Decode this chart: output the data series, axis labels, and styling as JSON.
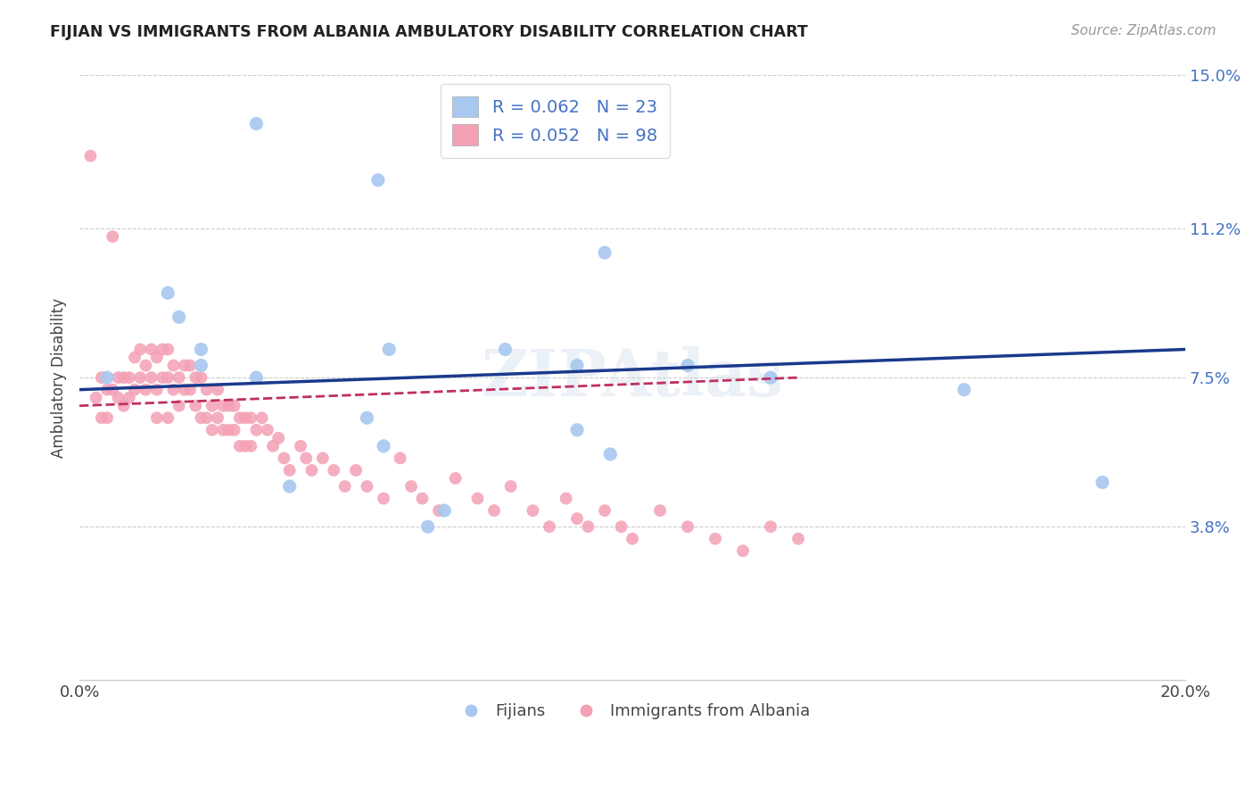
{
  "title": "FIJIAN VS IMMIGRANTS FROM ALBANIA AMBULATORY DISABILITY CORRELATION CHART",
  "source": "Source: ZipAtlas.com",
  "ylabel": "Ambulatory Disability",
  "xlim": [
    0.0,
    0.2
  ],
  "ylim": [
    0.0,
    0.15
  ],
  "fijian_R": 0.062,
  "fijian_N": 23,
  "albania_R": 0.052,
  "albania_N": 98,
  "fijian_color": "#a8c8f0",
  "albania_color": "#f4a0b5",
  "fijian_line_color": "#1a3a8c",
  "albania_line_color": "#c03060",
  "legend_label_fijian": "Fijians",
  "legend_label_albania": "Immigrants from Albania",
  "watermark": "ZIPAtlas",
  "fijian_x": [
    0.032,
    0.054,
    0.095,
    0.016,
    0.018,
    0.022,
    0.005,
    0.032,
    0.022,
    0.056,
    0.09,
    0.11,
    0.077,
    0.055,
    0.16,
    0.096,
    0.063,
    0.066,
    0.185,
    0.09,
    0.125,
    0.052,
    0.038
  ],
  "fijian_y": [
    0.138,
    0.124,
    0.106,
    0.096,
    0.09,
    0.082,
    0.075,
    0.075,
    0.078,
    0.082,
    0.078,
    0.078,
    0.082,
    0.058,
    0.072,
    0.056,
    0.038,
    0.042,
    0.049,
    0.062,
    0.075,
    0.065,
    0.048
  ],
  "albania_x": [
    0.002,
    0.003,
    0.004,
    0.004,
    0.005,
    0.005,
    0.006,
    0.006,
    0.007,
    0.007,
    0.008,
    0.008,
    0.009,
    0.009,
    0.01,
    0.01,
    0.011,
    0.011,
    0.012,
    0.012,
    0.013,
    0.013,
    0.014,
    0.014,
    0.014,
    0.015,
    0.015,
    0.016,
    0.016,
    0.016,
    0.017,
    0.017,
    0.018,
    0.018,
    0.019,
    0.019,
    0.02,
    0.02,
    0.021,
    0.021,
    0.022,
    0.022,
    0.023,
    0.023,
    0.024,
    0.024,
    0.025,
    0.025,
    0.026,
    0.026,
    0.027,
    0.027,
    0.028,
    0.028,
    0.029,
    0.029,
    0.03,
    0.03,
    0.031,
    0.031,
    0.032,
    0.033,
    0.034,
    0.035,
    0.036,
    0.037,
    0.038,
    0.04,
    0.041,
    0.042,
    0.044,
    0.046,
    0.048,
    0.05,
    0.052,
    0.055,
    0.058,
    0.06,
    0.062,
    0.065,
    0.068,
    0.072,
    0.075,
    0.078,
    0.082,
    0.085,
    0.088,
    0.09,
    0.092,
    0.095,
    0.098,
    0.1,
    0.105,
    0.11,
    0.115,
    0.12,
    0.125,
    0.13
  ],
  "albania_y": [
    0.13,
    0.07,
    0.075,
    0.065,
    0.072,
    0.065,
    0.11,
    0.072,
    0.075,
    0.07,
    0.075,
    0.068,
    0.075,
    0.07,
    0.08,
    0.072,
    0.082,
    0.075,
    0.078,
    0.072,
    0.082,
    0.075,
    0.08,
    0.072,
    0.065,
    0.082,
    0.075,
    0.082,
    0.075,
    0.065,
    0.078,
    0.072,
    0.075,
    0.068,
    0.078,
    0.072,
    0.078,
    0.072,
    0.075,
    0.068,
    0.075,
    0.065,
    0.072,
    0.065,
    0.068,
    0.062,
    0.072,
    0.065,
    0.068,
    0.062,
    0.068,
    0.062,
    0.068,
    0.062,
    0.065,
    0.058,
    0.065,
    0.058,
    0.065,
    0.058,
    0.062,
    0.065,
    0.062,
    0.058,
    0.06,
    0.055,
    0.052,
    0.058,
    0.055,
    0.052,
    0.055,
    0.052,
    0.048,
    0.052,
    0.048,
    0.045,
    0.055,
    0.048,
    0.045,
    0.042,
    0.05,
    0.045,
    0.042,
    0.048,
    0.042,
    0.038,
    0.045,
    0.04,
    0.038,
    0.042,
    0.038,
    0.035,
    0.042,
    0.038,
    0.035,
    0.032,
    0.038,
    0.035
  ],
  "fijian_line_x": [
    0.0,
    0.2
  ],
  "fijian_line_y": [
    0.072,
    0.082
  ],
  "albania_line_x": [
    0.0,
    0.13
  ],
  "albania_line_y": [
    0.068,
    0.075
  ]
}
